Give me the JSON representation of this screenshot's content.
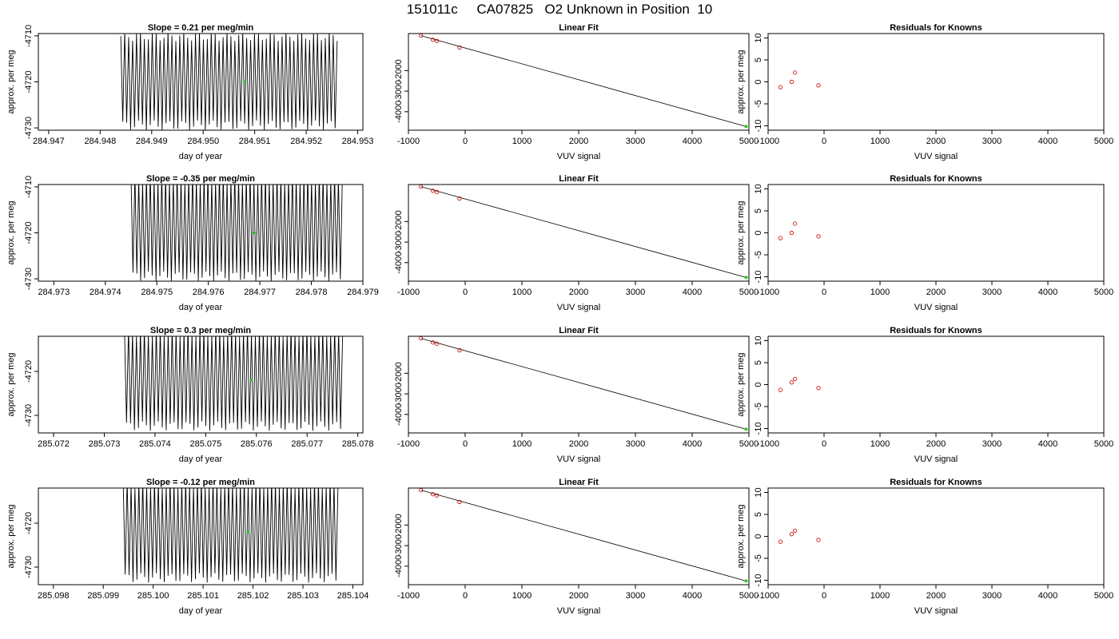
{
  "title": "151011c     CA07825   O2 Unknown in Position  10",
  "colors": {
    "trace": "#000000",
    "known_points": "#cc0000",
    "unknown_point": "#22cc22"
  },
  "chart_data": [
    {
      "panel": "slope",
      "row": 1,
      "type": "line",
      "title": "Slope =  0.21  per meg/min",
      "xlabel": "day of year",
      "ylabel": "approx. per meg",
      "xlim": [
        284.9468,
        284.9531
      ],
      "ylim": [
        -4730.5,
        -4709.5
      ],
      "xticks": [
        284.947,
        284.948,
        284.949,
        284.95,
        284.951,
        284.952,
        284.953
      ],
      "yticks": [
        -4730,
        -4720,
        -4710
      ],
      "trace_x_range": [
        284.9484,
        284.9526
      ],
      "trace_oscillation_range": [
        -4730,
        -4712
      ],
      "unknown_point": {
        "x": 284.9508,
        "y": -4720
      }
    },
    {
      "panel": "linear_fit",
      "row": 1,
      "type": "scatter",
      "title": "Linear Fit",
      "xlabel": "VUV signal",
      "ylabel": "",
      "xlim": [
        -1000,
        5000
      ],
      "ylim": [
        -4900,
        -200
      ],
      "xticks": [
        -1000,
        0,
        1000,
        2000,
        3000,
        4000,
        5000
      ],
      "yticks": [
        -4000,
        -3000,
        -2000
      ],
      "known_points": {
        "x": [
          -780,
          -570,
          -500,
          -100
        ],
        "y": [
          -300,
          -500,
          -560,
          -880
        ]
      },
      "unknown_point": {
        "x": 4950,
        "y": -4720
      },
      "fit_line": {
        "x": [
          -780,
          4950
        ],
        "y": [
          -300,
          -4720
        ]
      }
    },
    {
      "panel": "residuals",
      "row": 1,
      "type": "scatter",
      "title": "Residuals for Knowns",
      "xlabel": "VUV signal",
      "ylabel": "approx. per meg",
      "xlim": [
        -1000,
        5000
      ],
      "ylim": [
        -11,
        11
      ],
      "xticks": [
        -1000,
        0,
        1000,
        2000,
        3000,
        4000,
        5000
      ],
      "yticks": [
        -10,
        -5,
        0,
        5,
        10
      ],
      "known_points": {
        "x": [
          -780,
          -580,
          -520,
          -100
        ],
        "y": [
          -1.2,
          0,
          2.1,
          -0.8
        ]
      }
    },
    {
      "panel": "slope",
      "row": 2,
      "type": "line",
      "title": "Slope =  -0.35  per meg/min",
      "xlabel": "day of year",
      "ylabel": "approx. per meg",
      "xlim": [
        284.9727,
        284.979
      ],
      "ylim": [
        -4730.5,
        -4709.5
      ],
      "xticks": [
        284.973,
        284.974,
        284.975,
        284.976,
        284.977,
        284.978,
        284.979
      ],
      "yticks": [
        -4730,
        -4720,
        -4710
      ],
      "trace_x_range": [
        284.9745,
        284.9786
      ],
      "trace_oscillation_range": [
        -4730,
        -4710
      ],
      "unknown_point": {
        "x": 284.9769,
        "y": -4720
      }
    },
    {
      "panel": "linear_fit",
      "row": 2,
      "type": "scatter",
      "title": "Linear Fit",
      "xlabel": "VUV signal",
      "ylabel": "",
      "xlim": [
        -1000,
        5000
      ],
      "ylim": [
        -4900,
        -200
      ],
      "xticks": [
        -1000,
        0,
        1000,
        2000,
        3000,
        4000,
        5000
      ],
      "yticks": [
        -4000,
        -3000,
        -2000
      ],
      "known_points": {
        "x": [
          -780,
          -570,
          -500,
          -100
        ],
        "y": [
          -300,
          -500,
          -560,
          -880
        ]
      },
      "unknown_point": {
        "x": 4950,
        "y": -4720
      },
      "fit_line": {
        "x": [
          -780,
          4950
        ],
        "y": [
          -300,
          -4720
        ]
      }
    },
    {
      "panel": "residuals",
      "row": 2,
      "type": "scatter",
      "title": "Residuals for Knowns",
      "xlabel": "VUV signal",
      "ylabel": "approx. per meg",
      "xlim": [
        -1000,
        5000
      ],
      "ylim": [
        -11,
        11
      ],
      "xticks": [
        -1000,
        0,
        1000,
        2000,
        3000,
        4000,
        5000
      ],
      "yticks": [
        -10,
        -5,
        0,
        5,
        10
      ],
      "known_points": {
        "x": [
          -780,
          -580,
          -520,
          -100
        ],
        "y": [
          -1.2,
          0,
          2.1,
          -0.8
        ]
      }
    },
    {
      "panel": "slope",
      "row": 3,
      "type": "line",
      "title": "Slope =  0.3  per meg/min",
      "xlabel": "day of year",
      "ylabel": "approx. per meg",
      "xlim": [
        285.0717,
        285.0781
      ],
      "ylim": [
        -4734,
        -4712
      ],
      "xticks": [
        285.072,
        285.073,
        285.074,
        285.075,
        285.076,
        285.077,
        285.078
      ],
      "yticks": [
        -4730,
        -4720
      ],
      "trace_x_range": [
        285.0734,
        285.0777
      ],
      "trace_oscillation_range": [
        -4733,
        -4713
      ],
      "unknown_point": {
        "x": 285.0759,
        "y": -4722
      }
    },
    {
      "panel": "linear_fit",
      "row": 3,
      "type": "scatter",
      "title": "Linear Fit",
      "xlabel": "VUV signal",
      "ylabel": "",
      "xlim": [
        -1000,
        5000
      ],
      "ylim": [
        -4900,
        -200
      ],
      "xticks": [
        -1000,
        0,
        1000,
        2000,
        3000,
        4000,
        5000
      ],
      "yticks": [
        -4000,
        -3000,
        -2000
      ],
      "known_points": {
        "x": [
          -780,
          -570,
          -500,
          -100
        ],
        "y": [
          -300,
          -500,
          -560,
          -880
        ]
      },
      "unknown_point": {
        "x": 4950,
        "y": -4720
      },
      "fit_line": {
        "x": [
          -780,
          4950
        ],
        "y": [
          -300,
          -4720
        ]
      }
    },
    {
      "panel": "residuals",
      "row": 3,
      "type": "scatter",
      "title": "Residuals for Knowns",
      "xlabel": "VUV signal",
      "ylabel": "approx. per meg",
      "xlim": [
        -1000,
        5000
      ],
      "ylim": [
        -11,
        11
      ],
      "xticks": [
        -1000,
        0,
        1000,
        2000,
        3000,
        4000,
        5000
      ],
      "yticks": [
        -10,
        -5,
        0,
        5,
        10
      ],
      "known_points": {
        "x": [
          -780,
          -580,
          -520,
          -100
        ],
        "y": [
          -1.2,
          0.5,
          1.3,
          -0.8
        ]
      }
    },
    {
      "panel": "slope",
      "row": 4,
      "type": "line",
      "title": "Slope =  -0.12  per meg/min",
      "xlabel": "day of year",
      "ylabel": "approx. per meg",
      "xlim": [
        285.0977,
        285.1042
      ],
      "ylim": [
        -4734,
        -4712
      ],
      "xticks": [
        285.098,
        285.099,
        285.1,
        285.101,
        285.102,
        285.103,
        285.104
      ],
      "yticks": [
        -4730,
        -4720
      ],
      "trace_x_range": [
        285.0994,
        285.1037
      ],
      "trace_oscillation_range": [
        -4733,
        -4713
      ],
      "unknown_point": {
        "x": 285.1019,
        "y": -4722
      }
    },
    {
      "panel": "linear_fit",
      "row": 4,
      "type": "scatter",
      "title": "Linear Fit",
      "xlabel": "VUV signal",
      "ylabel": "",
      "xlim": [
        -1000,
        5000
      ],
      "ylim": [
        -4900,
        -200
      ],
      "xticks": [
        -1000,
        0,
        1000,
        2000,
        3000,
        4000,
        5000
      ],
      "yticks": [
        -4000,
        -3000,
        -2000
      ],
      "known_points": {
        "x": [
          -780,
          -570,
          -500,
          -100
        ],
        "y": [
          -300,
          -500,
          -560,
          -880
        ]
      },
      "unknown_point": {
        "x": 4950,
        "y": -4720
      },
      "fit_line": {
        "x": [
          -780,
          4950
        ],
        "y": [
          -300,
          -4720
        ]
      }
    },
    {
      "panel": "residuals",
      "row": 4,
      "type": "scatter",
      "title": "Residuals for Knowns",
      "xlabel": "VUV signal",
      "ylabel": "approx. per meg",
      "xlim": [
        -1000,
        5000
      ],
      "ylim": [
        -11,
        11
      ],
      "xticks": [
        -1000,
        0,
        1000,
        2000,
        3000,
        4000,
        5000
      ],
      "yticks": [
        -10,
        -5,
        0,
        5,
        10
      ],
      "known_points": {
        "x": [
          -780,
          -580,
          -520,
          -100
        ],
        "y": [
          -1.2,
          0.5,
          1.3,
          -0.8
        ]
      }
    }
  ]
}
